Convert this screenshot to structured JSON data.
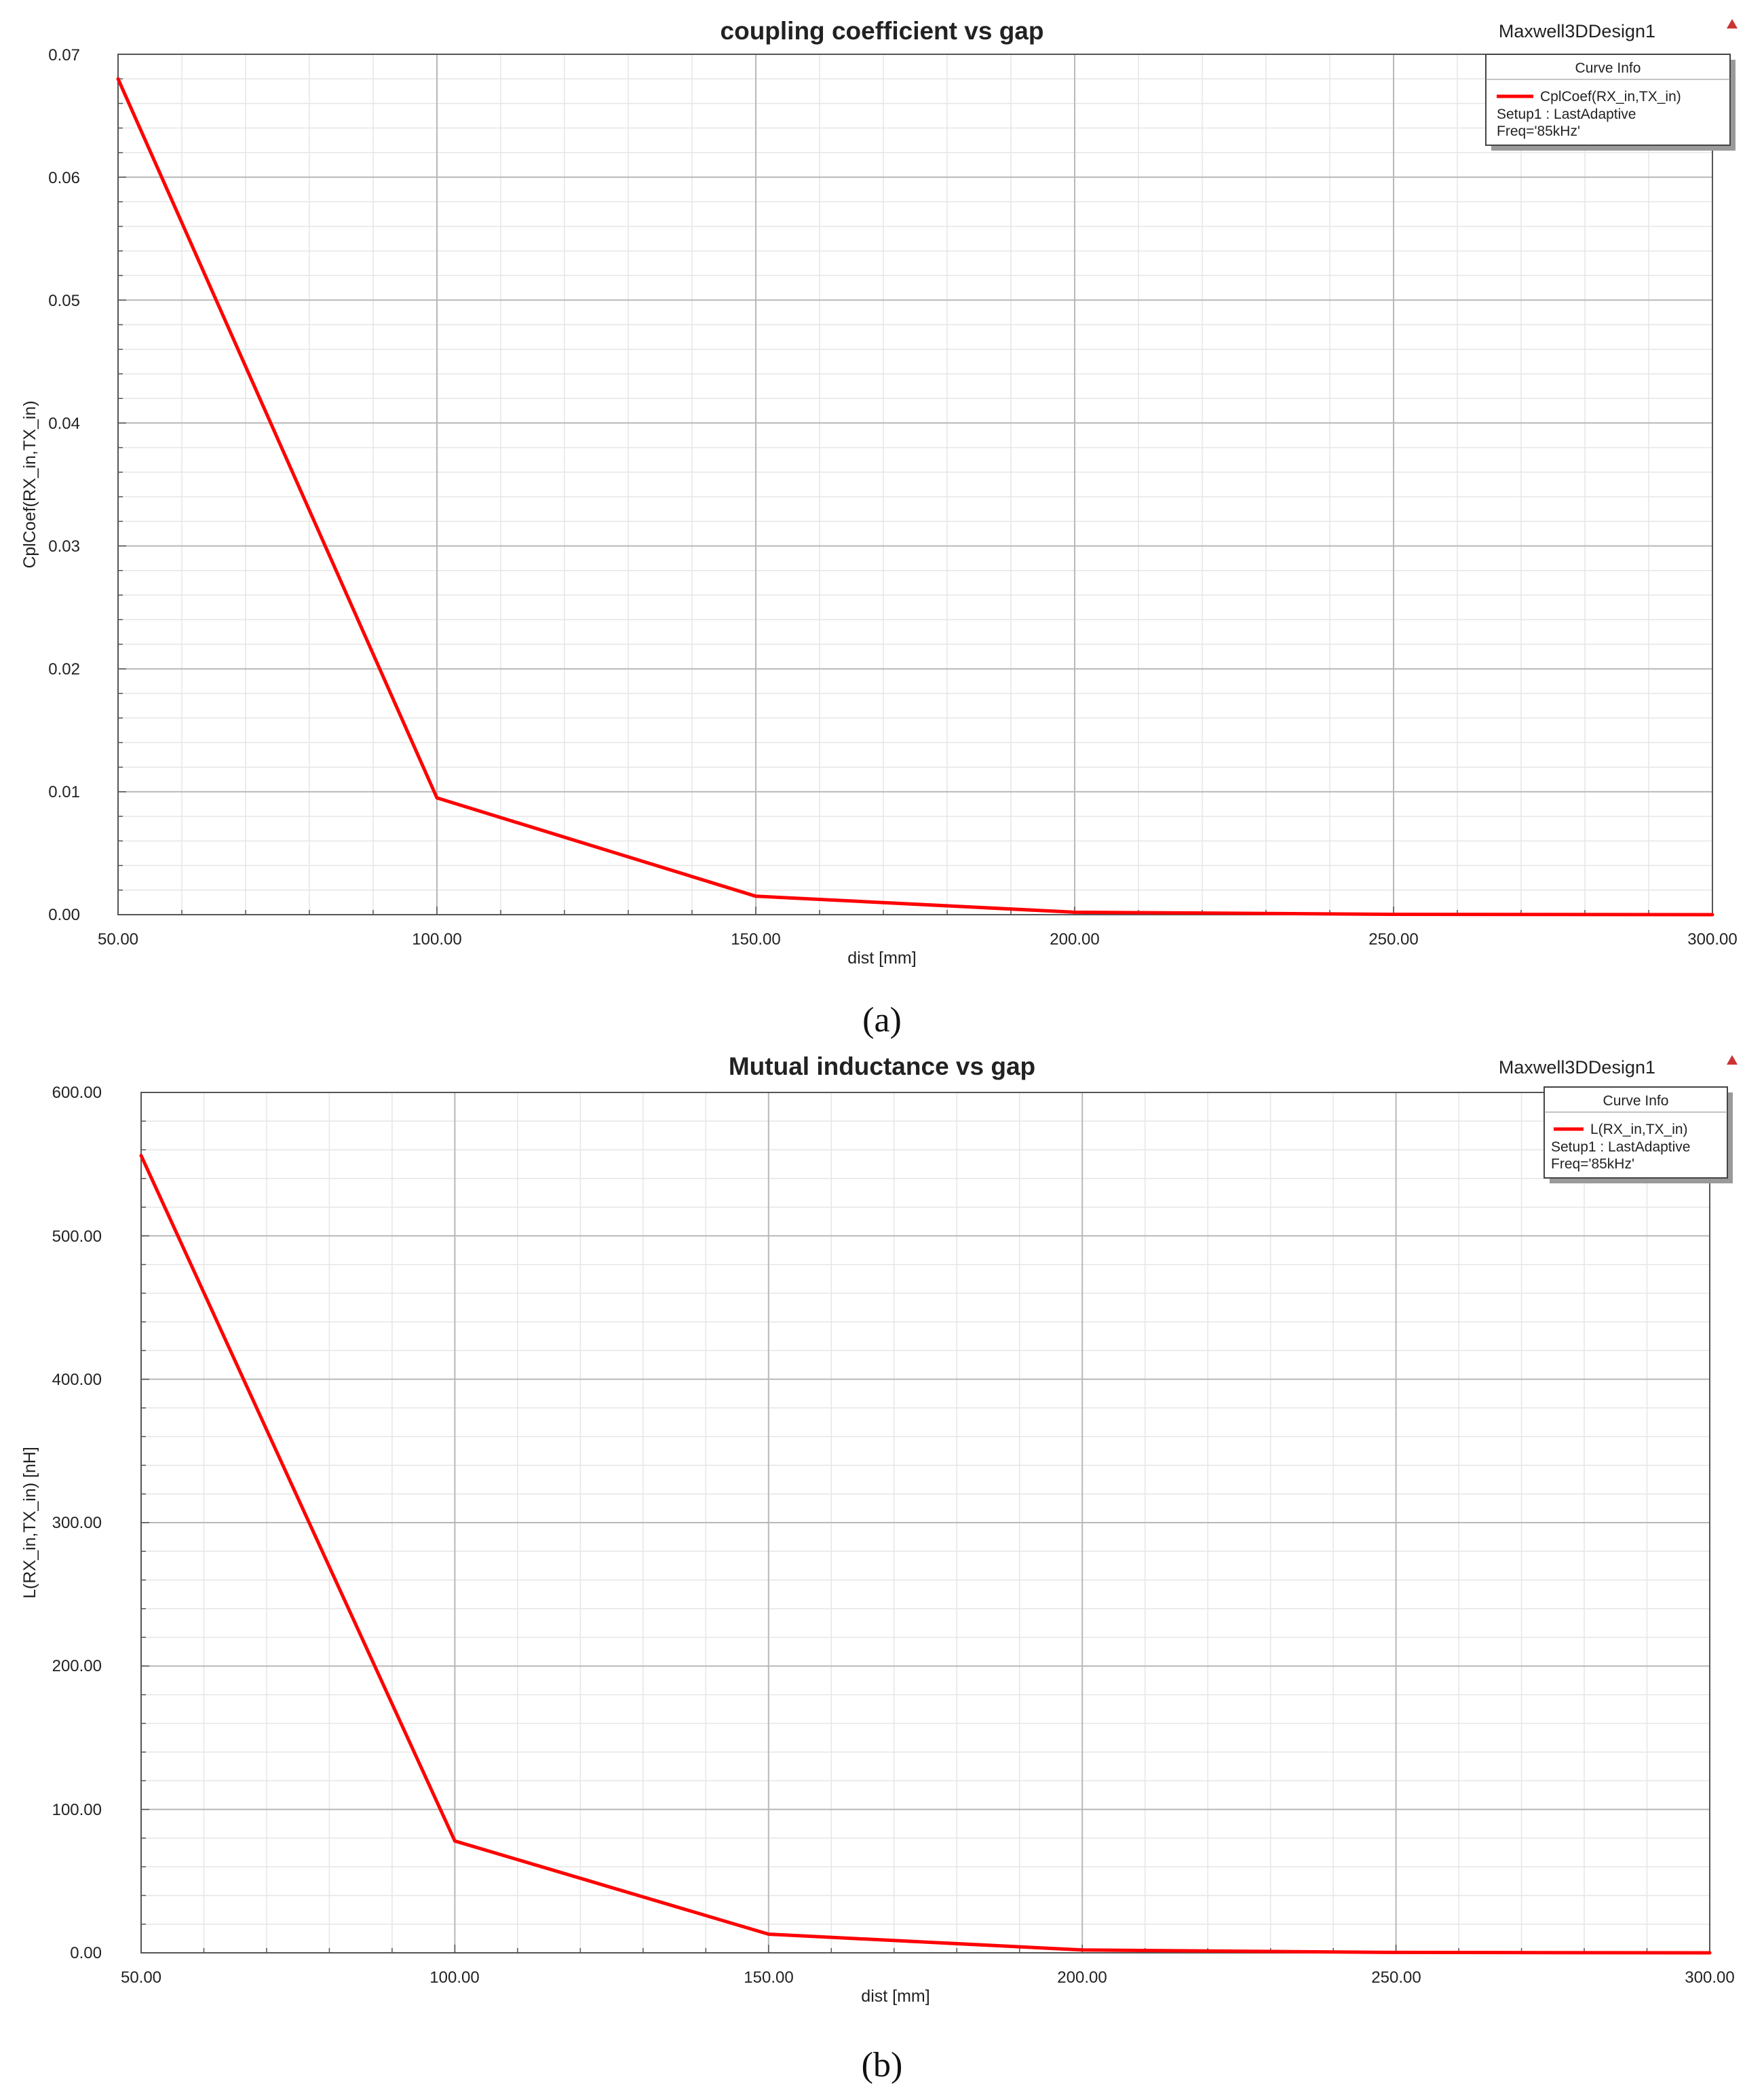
{
  "chart_data": [
    {
      "type": "line",
      "panel_label": "a",
      "title": "coupling coefficient vs gap",
      "design_name": "Maxwell3DDesign1",
      "xlabel": "dist [mm]",
      "ylabel": "CplCoef(RX_in,TX_in)",
      "xlim": [
        50,
        300
      ],
      "ylim": [
        0,
        0.07
      ],
      "x_ticks": [
        "50.00",
        "100.00",
        "150.00",
        "200.00",
        "250.00",
        "300.00"
      ],
      "y_ticks": [
        "0.00",
        "0.01",
        "0.02",
        "0.03",
        "0.04",
        "0.05",
        "0.06",
        "0.07"
      ],
      "grid": true,
      "legend": {
        "placement": "top-right",
        "title": "Curve Info",
        "entries": [
          {
            "name": "CplCoef(RX_in,TX_in)",
            "lines": [
              "Setup1 : LastAdaptive",
              "Freq='85kHz'"
            ],
            "color": "#ff0000"
          }
        ]
      },
      "series": [
        {
          "name": "CplCoef(RX_in,TX_in)",
          "color": "#ff0000",
          "x": [
            50,
            100,
            150,
            200,
            250,
            300
          ],
          "y": [
            0.068,
            0.0095,
            0.0015,
            0.0002,
            3e-05,
            0.0
          ]
        }
      ]
    },
    {
      "type": "line",
      "panel_label": "b",
      "title": "Mutual inductance vs gap",
      "design_name": "Maxwell3DDesign1",
      "xlabel": "dist [mm]",
      "ylabel": "L(RX_in,TX_in) [nH]",
      "xlim": [
        50,
        300
      ],
      "ylim": [
        0,
        600
      ],
      "x_ticks": [
        "50.00",
        "100.00",
        "150.00",
        "200.00",
        "250.00",
        "300.00"
      ],
      "y_ticks": [
        "0.00",
        "100.00",
        "200.00",
        "300.00",
        "400.00",
        "500.00",
        "600.00"
      ],
      "grid": true,
      "legend": {
        "placement": "top-right",
        "title": "Curve Info",
        "entries": [
          {
            "name": "L(RX_in,TX_in)",
            "lines": [
              "Setup1 : LastAdaptive",
              "Freq='85kHz'"
            ],
            "color": "#ff0000"
          }
        ]
      },
      "series": [
        {
          "name": "L(RX_in,TX_in)",
          "color": "#ff0000",
          "x": [
            50,
            100,
            150,
            200,
            250,
            300
          ],
          "y": [
            556,
            78,
            13,
            2,
            0.3,
            0.0
          ]
        }
      ]
    }
  ],
  "captions": [
    "(a)",
    "(b)"
  ],
  "colors": {
    "curve": "#ff0000",
    "marker": "#cc3333",
    "grid_major": "#b8b8b8",
    "grid_minor": "#e6e6e6",
    "axis": "#555555",
    "legend_border": "#444444",
    "legend_shadow": "#9a9a9a"
  },
  "icons": {
    "corner_marker": "triangle-marker-icon"
  }
}
